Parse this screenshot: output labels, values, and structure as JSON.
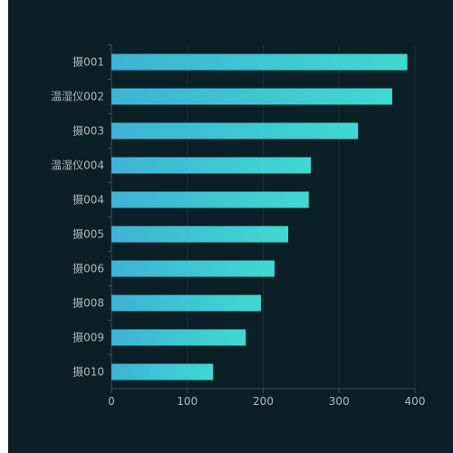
{
  "colors": {
    "background": "#0b1f27",
    "bar_start": "#3eb2d6",
    "bar_end": "#3fd9d0",
    "grid": "#183038",
    "axis": "#3a5058",
    "label": "#aeb9bd"
  },
  "chart_data": {
    "type": "bar",
    "orientation": "horizontal",
    "categories": [
      "摄001",
      "温湿仪002",
      "摄003",
      "温湿仪004",
      "摄004",
      "摄005",
      "摄006",
      "摄008",
      "摄009",
      "摄010"
    ],
    "values": [
      390,
      370,
      325,
      263,
      260,
      233,
      215,
      197,
      177,
      134
    ],
    "xlim": [
      0,
      400
    ],
    "xticks": [
      "0",
      "100",
      "200",
      "300",
      "400"
    ],
    "grid": true,
    "legend": "none"
  }
}
